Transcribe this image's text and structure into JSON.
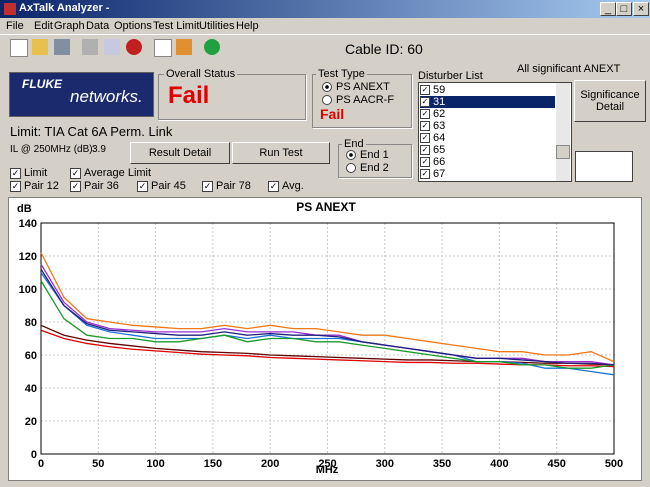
{
  "window": {
    "title": "AxTalk Analyzer -"
  },
  "menu": [
    "File",
    "Edit",
    "Graph",
    "Data",
    "Options",
    "Test Limit",
    "Utilities",
    "Help"
  ],
  "toolbar": {
    "cable_id": "Cable ID: 60"
  },
  "logo": {
    "line1": "FLUKE",
    "line2": "networks."
  },
  "overall_status": {
    "label": "Overall Status",
    "value": "Fail"
  },
  "test_type": {
    "label": "Test Type",
    "options": [
      "PS ANEXT",
      "PS AACR-F"
    ],
    "result": "Fail"
  },
  "disturber_list": {
    "label": "Disturber List",
    "note": "All significant ANEXT",
    "items": [
      "59",
      "31",
      "62",
      "63",
      "64",
      "65",
      "66",
      "67"
    ],
    "button": "Significance Detail"
  },
  "limit": {
    "name": "Limit: TIA Cat 6A Perm. Link",
    "il_label": "IL @ 250MHz (dB):",
    "il_value": 3.9
  },
  "buttons": [
    "Result Detail",
    "Run Test"
  ],
  "end": {
    "label": "End",
    "options": [
      "End 1",
      "End 2"
    ]
  },
  "chart_data": {
    "type": "line",
    "title": "PS ANEXT",
    "x_label": "MHz",
    "y_label": "dB",
    "x": [
      0,
      20,
      40,
      60,
      80,
      100,
      120,
      140,
      160,
      180,
      200,
      220,
      240,
      260,
      280,
      300,
      320,
      340,
      360,
      380,
      400,
      420,
      440,
      460,
      480,
      500
    ],
    "xlim": [
      0,
      500
    ],
    "ylim": [
      0,
      140
    ],
    "xticks": [
      0,
      50,
      100,
      150,
      200,
      250,
      300,
      350,
      400,
      450,
      500
    ],
    "yticks": [
      0,
      20,
      40,
      60,
      80,
      100,
      120,
      140
    ],
    "grid": true,
    "series": [
      {
        "name": "Limit",
        "color": "#e00000",
        "values": [
          75,
          70,
          67,
          65,
          63.5,
          62.5,
          61.5,
          60.5,
          60,
          59.5,
          58.5,
          58,
          57.5,
          57,
          56.5,
          56,
          55.5,
          55.5,
          55,
          55,
          54.5,
          54,
          54,
          53.5,
          53.5,
          53
        ]
      },
      {
        "name": "Average Limit",
        "color": "#600000",
        "values": [
          78,
          72,
          69,
          67,
          65.5,
          64,
          63,
          62,
          61.5,
          61,
          60,
          59.5,
          59,
          58.5,
          58,
          57.5,
          57,
          57,
          56.5,
          56,
          56,
          55.5,
          55,
          55,
          54.5,
          54
        ]
      },
      {
        "name": "Pair 12",
        "color": "#1e73d8",
        "values": [
          110,
          90,
          78,
          74,
          72,
          70,
          70,
          70,
          72,
          70,
          72,
          70,
          70,
          70,
          68,
          66,
          64,
          62,
          60,
          56,
          56,
          55,
          52,
          52,
          50,
          48
        ]
      },
      {
        "name": "Pair 36",
        "color": "#1a9a2a",
        "values": [
          105,
          82,
          72,
          70,
          70,
          68,
          68,
          70,
          72,
          68,
          70,
          70,
          68,
          68,
          66,
          64,
          62,
          60,
          58,
          56,
          56,
          54,
          54,
          52,
          52,
          54
        ]
      },
      {
        "name": "Pair 45",
        "color": "#9a30d0",
        "values": [
          115,
          92,
          80,
          76,
          75,
          74,
          74,
          74,
          76,
          74,
          74,
          74,
          72,
          72,
          68,
          66,
          64,
          62,
          60,
          58,
          58,
          58,
          56,
          56,
          56,
          54
        ]
      },
      {
        "name": "Pair 78",
        "color": "#f07818",
        "values": [
          122,
          95,
          82,
          80,
          78,
          77,
          76,
          76,
          78,
          76,
          78,
          76,
          76,
          74,
          72,
          72,
          70,
          68,
          66,
          64,
          62,
          62,
          60,
          60,
          62,
          56
        ]
      },
      {
        "name": "Avg.",
        "color": "#202080",
        "values": [
          112,
          90,
          79,
          75,
          74,
          73,
          72,
          72,
          74,
          72,
          73,
          72,
          72,
          71,
          68,
          66,
          64,
          62,
          60,
          58,
          58,
          57,
          56,
          55,
          55,
          54
        ]
      }
    ]
  }
}
